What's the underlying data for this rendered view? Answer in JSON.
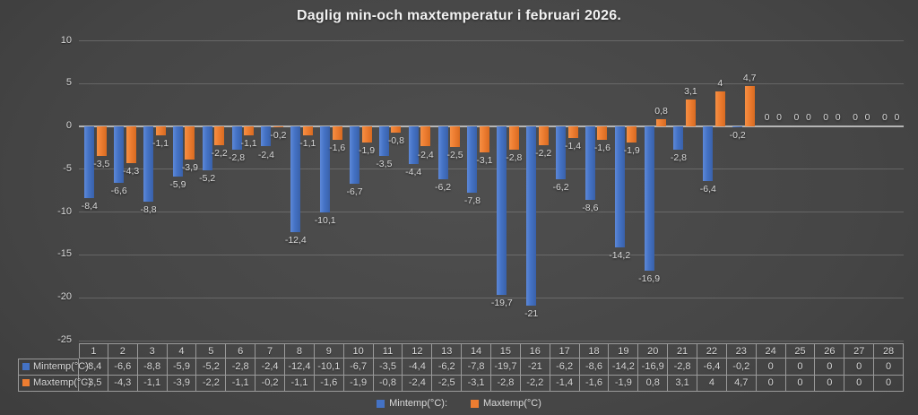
{
  "chart_data": {
    "type": "bar",
    "title": "Daglig min-och maxtemperatur i februari 2026.",
    "categories": [
      "1",
      "2",
      "3",
      "4",
      "5",
      "6",
      "7",
      "8",
      "9",
      "10",
      "11",
      "12",
      "13",
      "14",
      "15",
      "16",
      "17",
      "18",
      "19",
      "20",
      "21",
      "22",
      "23",
      "24",
      "25",
      "26",
      "27",
      "28"
    ],
    "series": [
      {
        "name": "Mintemp(°C):",
        "color": "#4472C4",
        "values": [
          -8.4,
          -6.6,
          -8.8,
          -5.9,
          -5.2,
          -2.8,
          -2.4,
          -12.4,
          -10.1,
          -6.7,
          -3.5,
          -4.4,
          -6.2,
          -7.8,
          -19.7,
          -21,
          -6.2,
          -8.6,
          -14.2,
          -16.9,
          -2.8,
          -6.4,
          -0.2,
          0,
          0,
          0,
          0,
          0
        ],
        "labels": [
          "-8,4",
          "-6,6",
          "-8,8",
          "-5,9",
          "-5,2",
          "-2,8",
          "-2,4",
          "-12,4",
          "-10,1",
          "-6,7",
          "-3,5",
          "-4,4",
          "-6,2",
          "-7,8",
          "-19,7",
          "-21",
          "-6,2",
          "-8,6",
          "-14,2",
          "-16,9",
          "-2,8",
          "-6,4",
          "-0,2",
          "0",
          "0",
          "0",
          "0",
          "0"
        ]
      },
      {
        "name": "Maxtemp(°C)",
        "color": "#ED7D31",
        "values": [
          -3.5,
          -4.3,
          -1.1,
          -3.9,
          -2.2,
          -1.1,
          -0.2,
          -1.1,
          -1.6,
          -1.9,
          -0.8,
          -2.4,
          -2.5,
          -3.1,
          -2.8,
          -2.2,
          -1.4,
          -1.6,
          -1.9,
          0.8,
          3.1,
          4,
          4.7,
          0,
          0,
          0,
          0,
          0
        ],
        "labels": [
          "-3,5",
          "-4,3",
          "-1,1",
          "-3,9",
          "-2,2",
          "-1,1",
          "-0,2",
          "-1,1",
          "-1,6",
          "-1,9",
          "-0,8",
          "-2,4",
          "-2,5",
          "-3,1",
          "-2,8",
          "-2,2",
          "-1,4",
          "-1,6",
          "-1,9",
          "0,8",
          "3,1",
          "4",
          "4,7",
          "0",
          "0",
          "0",
          "0",
          "0"
        ]
      }
    ],
    "ylim": [
      -25,
      10
    ],
    "ytick_step": 5,
    "yticks": [
      "10",
      "5",
      "0",
      "-5",
      "-10",
      "-15",
      "-20",
      "-25"
    ],
    "grid": true,
    "legend_position": "bottom",
    "data_table": true
  }
}
